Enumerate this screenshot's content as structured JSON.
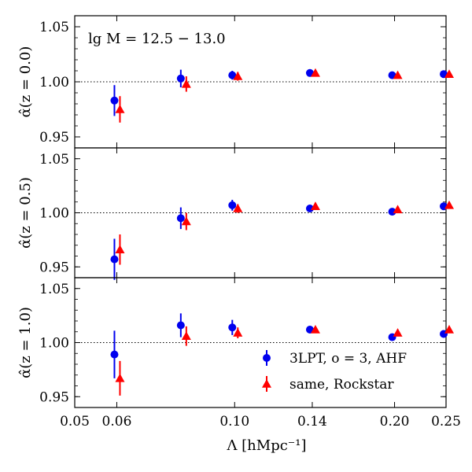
{
  "chart_data": {
    "type": "scatter",
    "x_label_text": "Λ [hMpc⁻¹]",
    "x_ticks": [
      0.05,
      0.06,
      0.1,
      0.14,
      0.2,
      0.25
    ],
    "x_tick_labels": [
      "0.05",
      "0.06",
      "0.10",
      "0.14",
      "0.20",
      "0.25"
    ],
    "xlim": [
      0.05,
      0.25
    ],
    "annotation": "lg M = 12.5 − 13.0",
    "reference_line": 1.0,
    "legend": [
      {
        "label": "3LPT, o = 3, AHF",
        "color": "#0000ee",
        "marker": "circle"
      },
      {
        "label": "same, Rockstar",
        "color": "#ff0000",
        "marker": "triangle"
      }
    ],
    "panels": [
      {
        "ylabel": "α̂(z = 0.0)",
        "ylim": [
          0.94,
          1.06
        ],
        "y_ticks": [
          0.95,
          1.0,
          1.05
        ],
        "y_tick_labels": [
          "0.95",
          "1.00",
          "1.05"
        ],
        "series": [
          {
            "name": "3LPT, o = 3, AHF",
            "x": [
              0.06,
              0.08,
              0.1,
              0.14,
              0.2,
              0.25
            ],
            "y": [
              0.983,
              1.003,
              1.006,
              1.008,
              1.006,
              1.007
            ],
            "err": [
              0.014,
              0.008,
              0.004,
              0.002,
              0.002,
              0.002
            ]
          },
          {
            "name": "same, Rockstar",
            "x": [
              0.06,
              0.08,
              0.1,
              0.14,
              0.2,
              0.25
            ],
            "y": [
              0.975,
              0.998,
              1.005,
              1.008,
              1.006,
              1.007
            ],
            "err": [
              0.012,
              0.007,
              0.004,
              0.002,
              0.002,
              0.002
            ]
          }
        ]
      },
      {
        "ylabel": "α̂(z = 0.5)",
        "ylim": [
          0.94,
          1.06
        ],
        "y_ticks": [
          0.95,
          1.0,
          1.05
        ],
        "y_tick_labels": [
          "0.95",
          "1.00",
          "1.05"
        ],
        "series": [
          {
            "name": "3LPT, o = 3, AHF",
            "x": [
              0.06,
              0.08,
              0.1,
              0.14,
              0.2,
              0.25
            ],
            "y": [
              0.957,
              0.995,
              1.007,
              1.004,
              1.001,
              1.006
            ],
            "err": [
              0.019,
              0.01,
              0.005,
              0.002,
              0.002,
              0.002
            ]
          },
          {
            "name": "same, Rockstar",
            "x": [
              0.06,
              0.08,
              0.1,
              0.14,
              0.2,
              0.25
            ],
            "y": [
              0.966,
              0.992,
              1.004,
              1.006,
              1.003,
              1.007
            ],
            "err": [
              0.014,
              0.008,
              0.004,
              0.002,
              0.002,
              0.002
            ]
          }
        ]
      },
      {
        "ylabel": "α̂(z = 1.0)",
        "ylim": [
          0.94,
          1.06
        ],
        "y_ticks": [
          0.95,
          1.0,
          1.05
        ],
        "y_tick_labels": [
          "0.95",
          "1.00",
          "1.05"
        ],
        "series": [
          {
            "name": "3LPT, o = 3, AHF",
            "x": [
              0.06,
              0.08,
              0.1,
              0.14,
              0.2,
              0.25
            ],
            "y": [
              0.989,
              1.016,
              1.014,
              1.012,
              1.005,
              1.008
            ],
            "err": [
              0.022,
              0.011,
              0.007,
              0.003,
              0.002,
              0.002
            ]
          },
          {
            "name": "same, Rockstar",
            "x": [
              0.06,
              0.08,
              0.1,
              0.14,
              0.2,
              0.25
            ],
            "y": [
              0.967,
              1.006,
              1.009,
              1.012,
              1.009,
              1.012
            ],
            "err": [
              0.016,
              0.009,
              0.005,
              0.003,
              0.002,
              0.002
            ]
          }
        ]
      }
    ]
  }
}
